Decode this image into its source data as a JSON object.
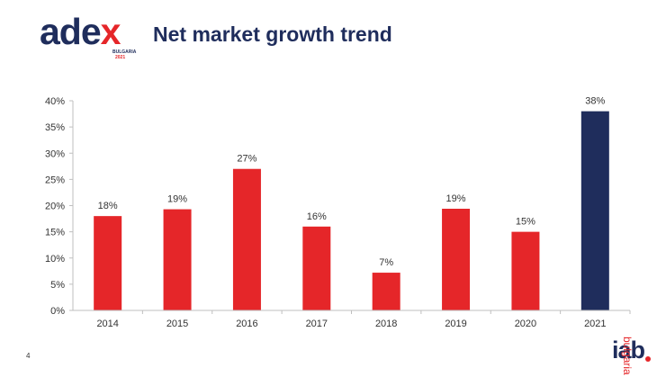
{
  "header": {
    "logo_word_main": "ade",
    "logo_word_accent": "x",
    "logo_sub": "BULGARIA",
    "logo_year": "2021",
    "title": "Net market growth trend"
  },
  "footer": {
    "page_number": "4",
    "iab_word": "iab",
    "iab_sub": "bulgaria"
  },
  "colors": {
    "primary_bar": "#e52629",
    "highlight_bar": "#1f2d5c",
    "navy": "#1f2d5c",
    "red": "#e52629"
  },
  "chart_data": {
    "type": "bar",
    "title": "Net market growth trend",
    "xlabel": "",
    "ylabel": "",
    "categories": [
      "2014",
      "2015",
      "2016",
      "2017",
      "2018",
      "2019",
      "2020",
      "2021"
    ],
    "values": [
      18,
      19.3,
      27,
      16,
      7.2,
      19.4,
      15,
      38
    ],
    "data_labels": [
      "18%",
      "19%",
      "27%",
      "16%",
      "7%",
      "19%",
      "15%",
      "38%"
    ],
    "highlight_index": 7,
    "ylim": [
      0,
      40
    ],
    "yticks": [
      0,
      5,
      10,
      15,
      20,
      25,
      30,
      35,
      40
    ],
    "ytick_labels": [
      "0%",
      "5%",
      "10%",
      "15%",
      "20%",
      "25%",
      "30%",
      "35%",
      "40%"
    ],
    "grid": false
  }
}
